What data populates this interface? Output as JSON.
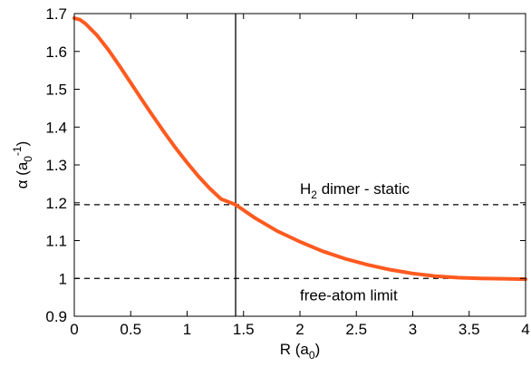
{
  "chart_data": {
    "type": "line",
    "xlim": [
      0,
      4
    ],
    "ylim": [
      0.9,
      1.7
    ],
    "x_ticks": [
      "0",
      "0.5",
      "1",
      "1.5",
      "2",
      "2.5",
      "3",
      "3.5",
      "4"
    ],
    "y_ticks": [
      "0.9",
      "1",
      "1.1",
      "1.2",
      "1.3",
      "1.4",
      "1.5",
      "1.6",
      "1.7"
    ],
    "xlabel": {
      "main": "R (a",
      "sub": "0",
      "end": ")"
    },
    "ylabel": {
      "main": "α (a",
      "sub": "0",
      "sup": "-1",
      "end": ")"
    },
    "grid": false,
    "series": [
      {
        "color": "#ff5a1f",
        "x": [
          0,
          0.05,
          0.1,
          0.2,
          0.3,
          0.4,
          0.5,
          0.6,
          0.7,
          0.8,
          0.9,
          1.0,
          1.1,
          1.2,
          1.3,
          1.43,
          1.6,
          1.8,
          2.0,
          2.2,
          2.4,
          2.6,
          2.8,
          3.0,
          3.2,
          3.4,
          3.6,
          3.8,
          4.0
        ],
        "y": [
          1.688,
          1.684,
          1.673,
          1.643,
          1.605,
          1.562,
          1.517,
          1.472,
          1.428,
          1.385,
          1.344,
          1.306,
          1.27,
          1.238,
          1.21,
          1.195,
          1.16,
          1.125,
          1.097,
          1.072,
          1.052,
          1.036,
          1.023,
          1.013,
          1.006,
          1.002,
          1.0,
          0.999,
          0.998
        ]
      }
    ],
    "reference_lines": [
      {
        "orientation": "horizontal",
        "value": 1.195,
        "style": "dashed",
        "label": {
          "main": "H",
          "sub": "2",
          "rest": " dimer - static"
        }
      },
      {
        "orientation": "horizontal",
        "value": 1.0,
        "style": "dashed",
        "label": {
          "main": "free-atom limit"
        }
      },
      {
        "orientation": "vertical",
        "value": 1.43,
        "style": "solid"
      }
    ]
  }
}
